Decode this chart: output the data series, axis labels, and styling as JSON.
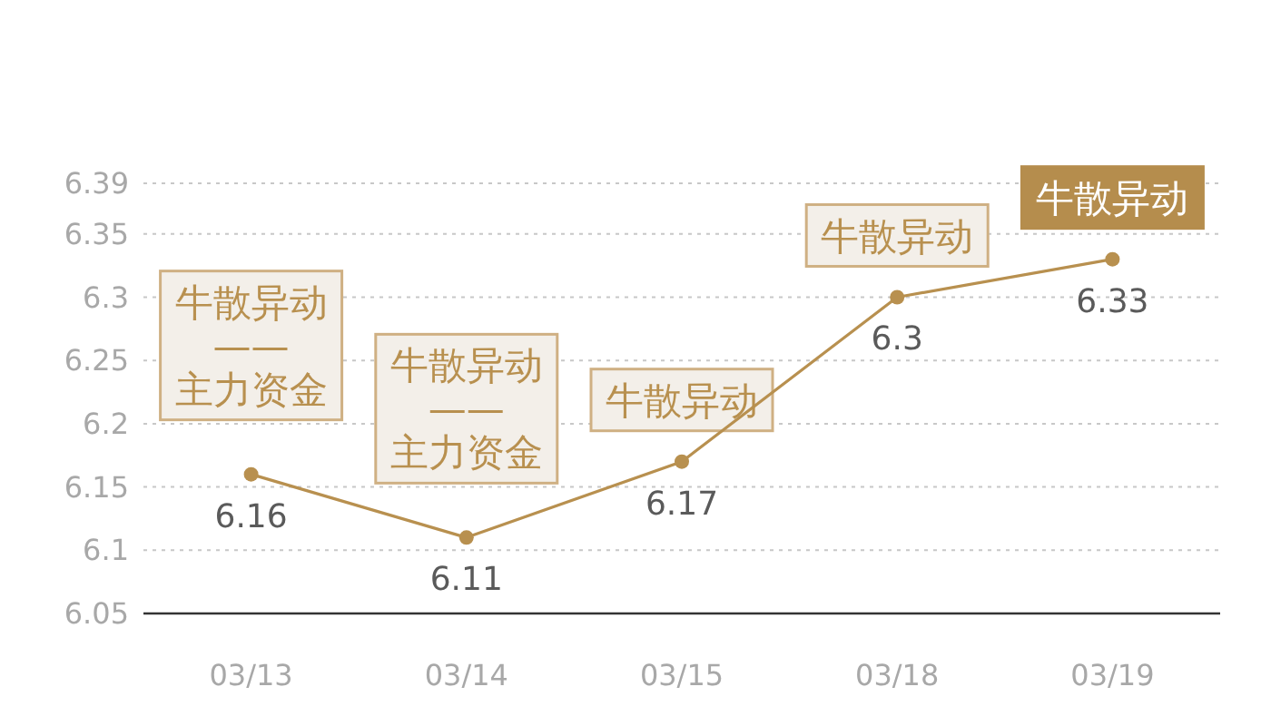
{
  "chart_data": {
    "type": "line",
    "categories": [
      "03/13",
      "03/14",
      "03/15",
      "03/18",
      "03/19"
    ],
    "series": [
      {
        "color": "#b8904f",
        "values": [
          6.16,
          6.11,
          6.17,
          6.3,
          6.33
        ]
      }
    ],
    "ylim": [
      6.05,
      6.39
    ],
    "yticks": [
      6.05,
      6.1,
      6.15,
      6.2,
      6.25,
      6.3,
      6.35,
      6.39
    ],
    "grid": "y",
    "marker": "circle",
    "line_style": "solid",
    "data_labels": true,
    "annotations": [
      {
        "text": "牛散异动\n——\n主力资金",
        "x": "03/13",
        "y": 6.16
      },
      {
        "text": "牛散异动\n——\n主力资金",
        "x": "03/14",
        "y": 6.11
      },
      {
        "text": "牛散异动",
        "x": "03/15",
        "y": 6.17
      },
      {
        "text": "牛散异动",
        "x": "03/18",
        "y": 6.3
      },
      {
        "text": "牛散异动",
        "x": "03/19",
        "y": 6.33
      }
    ]
  }
}
